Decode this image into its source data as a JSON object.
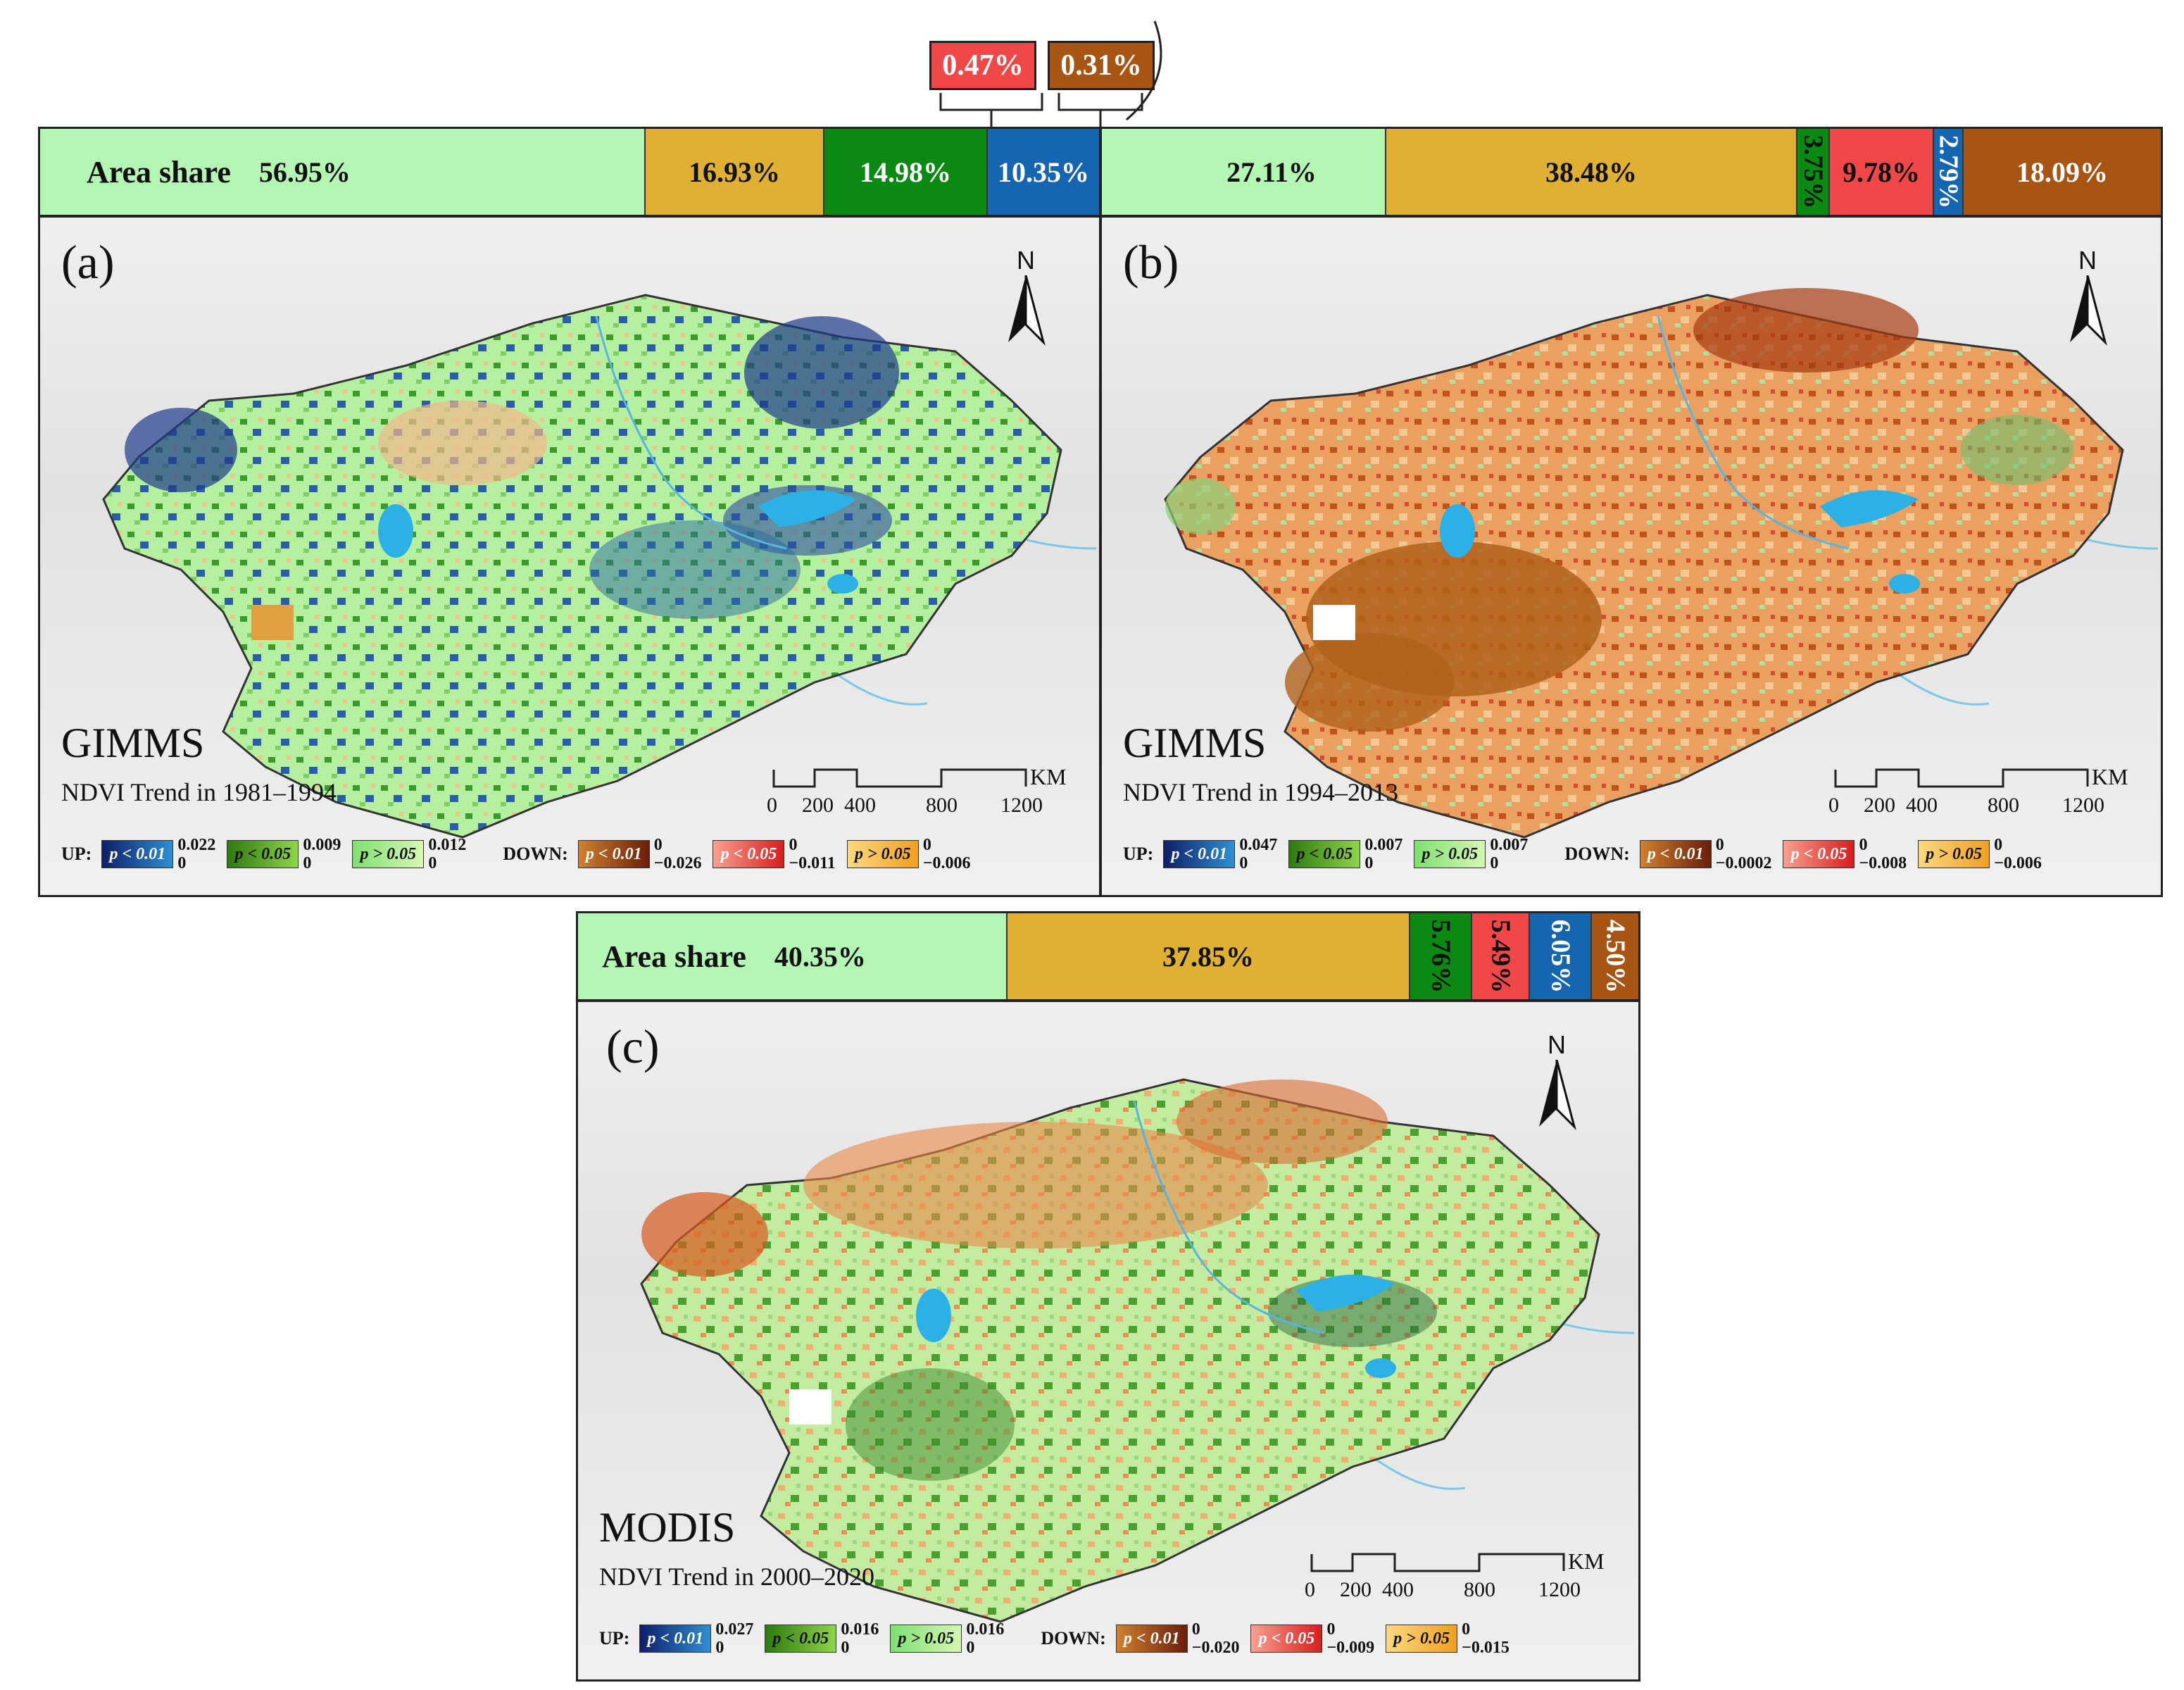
{
  "colors": {
    "up_p001": "#1a3d8f",
    "up_p005": "#2e8b1e",
    "up_gt005": "#b4f5b4",
    "down_p001": "#a0521a",
    "down_p005": "#f04848",
    "down_gt005": "#e6b030",
    "area_green_light": "#b4f7b4",
    "area_tan": "#e0b032",
    "area_green": "#0a8a12",
    "area_red": "#f04848",
    "area_blue": "#1565b0",
    "area_brown": "#a85412",
    "water": "#2bb1e6"
  },
  "callouts": {
    "red_value": "0.47%",
    "brown_value": "0.31%"
  },
  "panel_a": {
    "area_label": "Area share",
    "shares": [
      "56.95%",
      "16.93%",
      "14.98%",
      "10.35%"
    ],
    "shares_pct": [
      56.95,
      16.93,
      14.98,
      10.35,
      0.47,
      0.31
    ],
    "letter": "(a)",
    "dataset": "GIMMS",
    "subtitle": "NDVI Trend in 1981–1994",
    "north": "N",
    "scale_unit": "KM",
    "scale_ticks": [
      "0",
      "200",
      "400",
      "800",
      "1200"
    ],
    "legend": {
      "up_label": "UP:",
      "down_label": "DOWN:",
      "p001": "p < 0.01",
      "p005": "p < 0.05",
      "pgt005": "p > 0.05",
      "up_p001": [
        "0.022",
        "0"
      ],
      "up_p005": [
        "0.009",
        "0"
      ],
      "up_gt005": [
        "0.012",
        "0"
      ],
      "down_p001": [
        "0",
        "−0.026"
      ],
      "down_p005": [
        "0",
        "−0.011"
      ],
      "down_gt005": [
        "0",
        "−0.006"
      ]
    }
  },
  "panel_b": {
    "shares": [
      "27.11%",
      "38.48%",
      "3.75%",
      "9.78%",
      "2.79%",
      "18.09%"
    ],
    "shares_pct": [
      27.11,
      38.48,
      3.75,
      9.78,
      2.79,
      18.09
    ],
    "letter": "(b)",
    "dataset": "GIMMS",
    "subtitle": "NDVI Trend in 1994–2013",
    "north": "N",
    "scale_unit": "KM",
    "scale_ticks": [
      "0",
      "200",
      "400",
      "800",
      "1200"
    ],
    "legend": {
      "up_label": "UP:",
      "down_label": "DOWN:",
      "p001": "p < 0.01",
      "p005": "p < 0.05",
      "pgt005": "p > 0.05",
      "up_p001": [
        "0.047",
        "0"
      ],
      "up_p005": [
        "0.007",
        "0"
      ],
      "up_gt005": [
        "0.007",
        "0"
      ],
      "down_p001": [
        "0",
        "−0.0002"
      ],
      "down_p005": [
        "0",
        "−0.008"
      ],
      "down_gt005": [
        "0",
        "−0.006"
      ]
    }
  },
  "panel_c": {
    "area_label": "Area share",
    "shares": [
      "40.35%",
      "37.85%",
      "5.76%",
      "5.49%",
      "6.05%",
      "4.50%"
    ],
    "shares_pct": [
      40.35,
      37.85,
      5.76,
      5.49,
      6.05,
      4.5
    ],
    "letter": "(c)",
    "dataset": "MODIS",
    "subtitle": "NDVI Trend in 2000–2020",
    "north": "N",
    "scale_unit": "KM",
    "scale_ticks": [
      "0",
      "200",
      "400",
      "800",
      "1200"
    ],
    "legend": {
      "up_label": "UP:",
      "down_label": "DOWN:",
      "p001": "p < 0.01",
      "p005": "p < 0.05",
      "pgt005": "p > 0.05",
      "up_p001": [
        "0.027",
        "0"
      ],
      "up_p005": [
        "0.016",
        "0"
      ],
      "up_gt005": [
        "0.016",
        "0"
      ],
      "down_p001": [
        "0",
        "−0.020"
      ],
      "down_p005": [
        "0",
        "−0.009"
      ],
      "down_gt005": [
        "0",
        "−0.015"
      ]
    }
  }
}
